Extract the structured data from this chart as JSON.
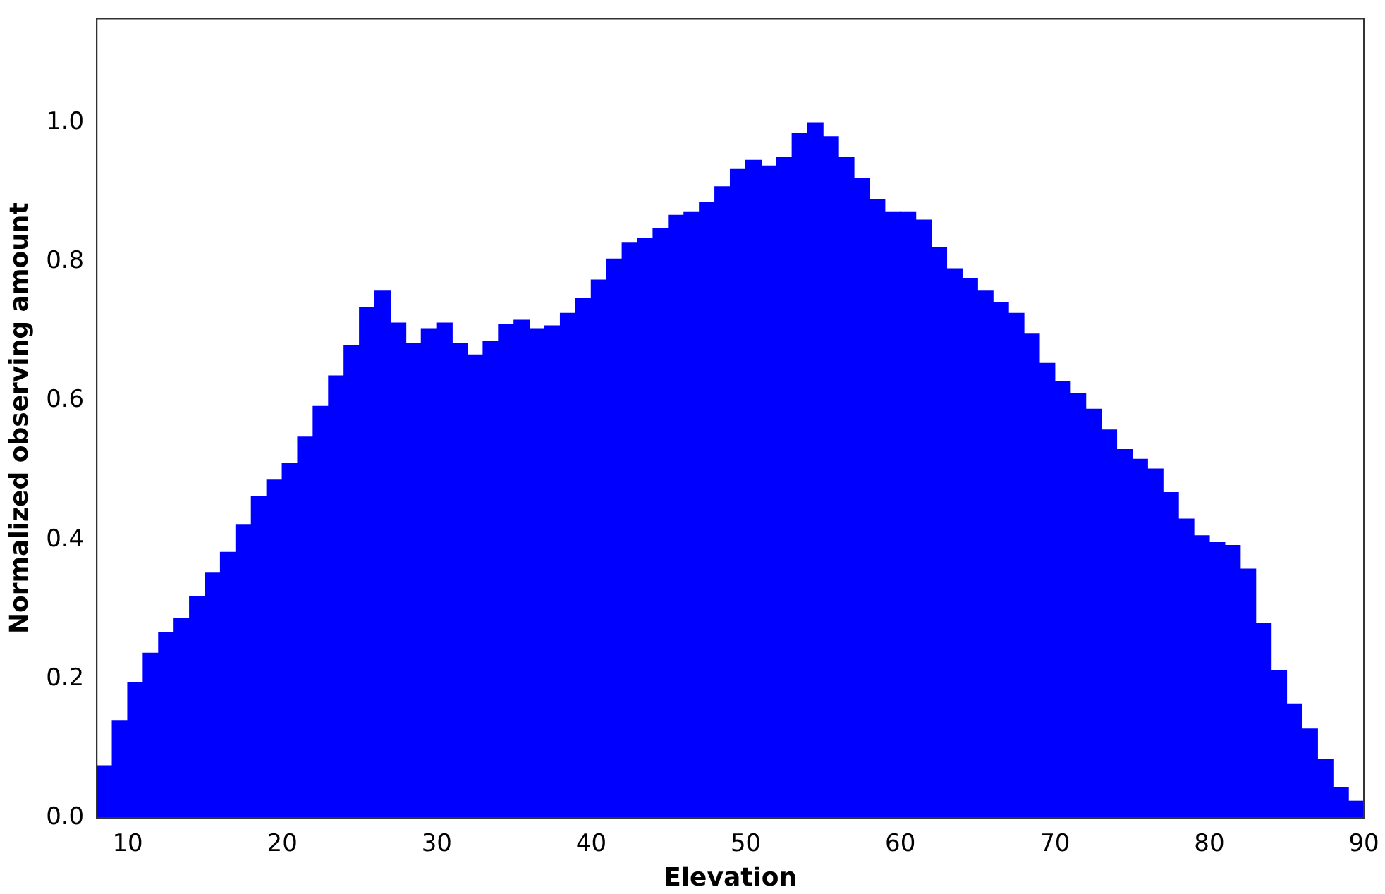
{
  "chart_data": {
    "type": "histogram",
    "xlabel": "Elevation",
    "ylabel": "Normalized observing amount",
    "color": "#0000ff",
    "bins": [
      8,
      9,
      10,
      11,
      12,
      13,
      14,
      15,
      16,
      17,
      18,
      19,
      20,
      21,
      22,
      23,
      24,
      25,
      26,
      27,
      28,
      29,
      30,
      31,
      32,
      33,
      34,
      35,
      36,
      37,
      38,
      39,
      40,
      41,
      42,
      43,
      44,
      45,
      46,
      47,
      48,
      49,
      50,
      51,
      52,
      53,
      54,
      55,
      56,
      57,
      58,
      59,
      60,
      61,
      62,
      63,
      64,
      65,
      66,
      67,
      68,
      69,
      70,
      71,
      72,
      73,
      74,
      75,
      76,
      77,
      78,
      79,
      80,
      81,
      82,
      83,
      84,
      85,
      86,
      87,
      88,
      89,
      90
    ],
    "values": [
      0.075,
      0.14,
      0.195,
      0.237,
      0.267,
      0.287,
      0.318,
      0.352,
      0.382,
      0.422,
      0.462,
      0.486,
      0.51,
      0.548,
      0.592,
      0.636,
      0.68,
      0.734,
      0.758,
      0.712,
      0.683,
      0.704,
      0.712,
      0.683,
      0.666,
      0.686,
      0.71,
      0.716,
      0.704,
      0.708,
      0.726,
      0.748,
      0.774,
      0.804,
      0.828,
      0.834,
      0.848,
      0.867,
      0.872,
      0.886,
      0.908,
      0.934,
      0.946,
      0.938,
      0.95,
      0.985,
      1.0,
      0.98,
      0.95,
      0.92,
      0.89,
      0.872,
      0.872,
      0.86,
      0.82,
      0.79,
      0.776,
      0.758,
      0.742,
      0.726,
      0.696,
      0.654,
      0.628,
      0.61,
      0.588,
      0.558,
      0.53,
      0.516,
      0.502,
      0.468,
      0.43,
      0.406,
      0.396,
      0.392,
      0.358,
      0.28,
      0.212,
      0.164,
      0.128,
      0.084,
      0.044,
      0.024
    ],
    "xlim": [
      8,
      90
    ],
    "ylim": [
      0,
      1.15
    ],
    "xticks": [
      10,
      20,
      30,
      40,
      50,
      60,
      70,
      80,
      90
    ],
    "yticks": [
      {
        "value": 0,
        "label": "0.0"
      },
      {
        "value": 0.2,
        "label": "0.2"
      },
      {
        "value": 0.4,
        "label": "0.4"
      },
      {
        "value": 0.6,
        "label": "0.6"
      },
      {
        "value": 0.8,
        "label": "0.8"
      },
      {
        "value": 1.0,
        "label": "1.0"
      }
    ],
    "grid": false,
    "legend": false
  }
}
